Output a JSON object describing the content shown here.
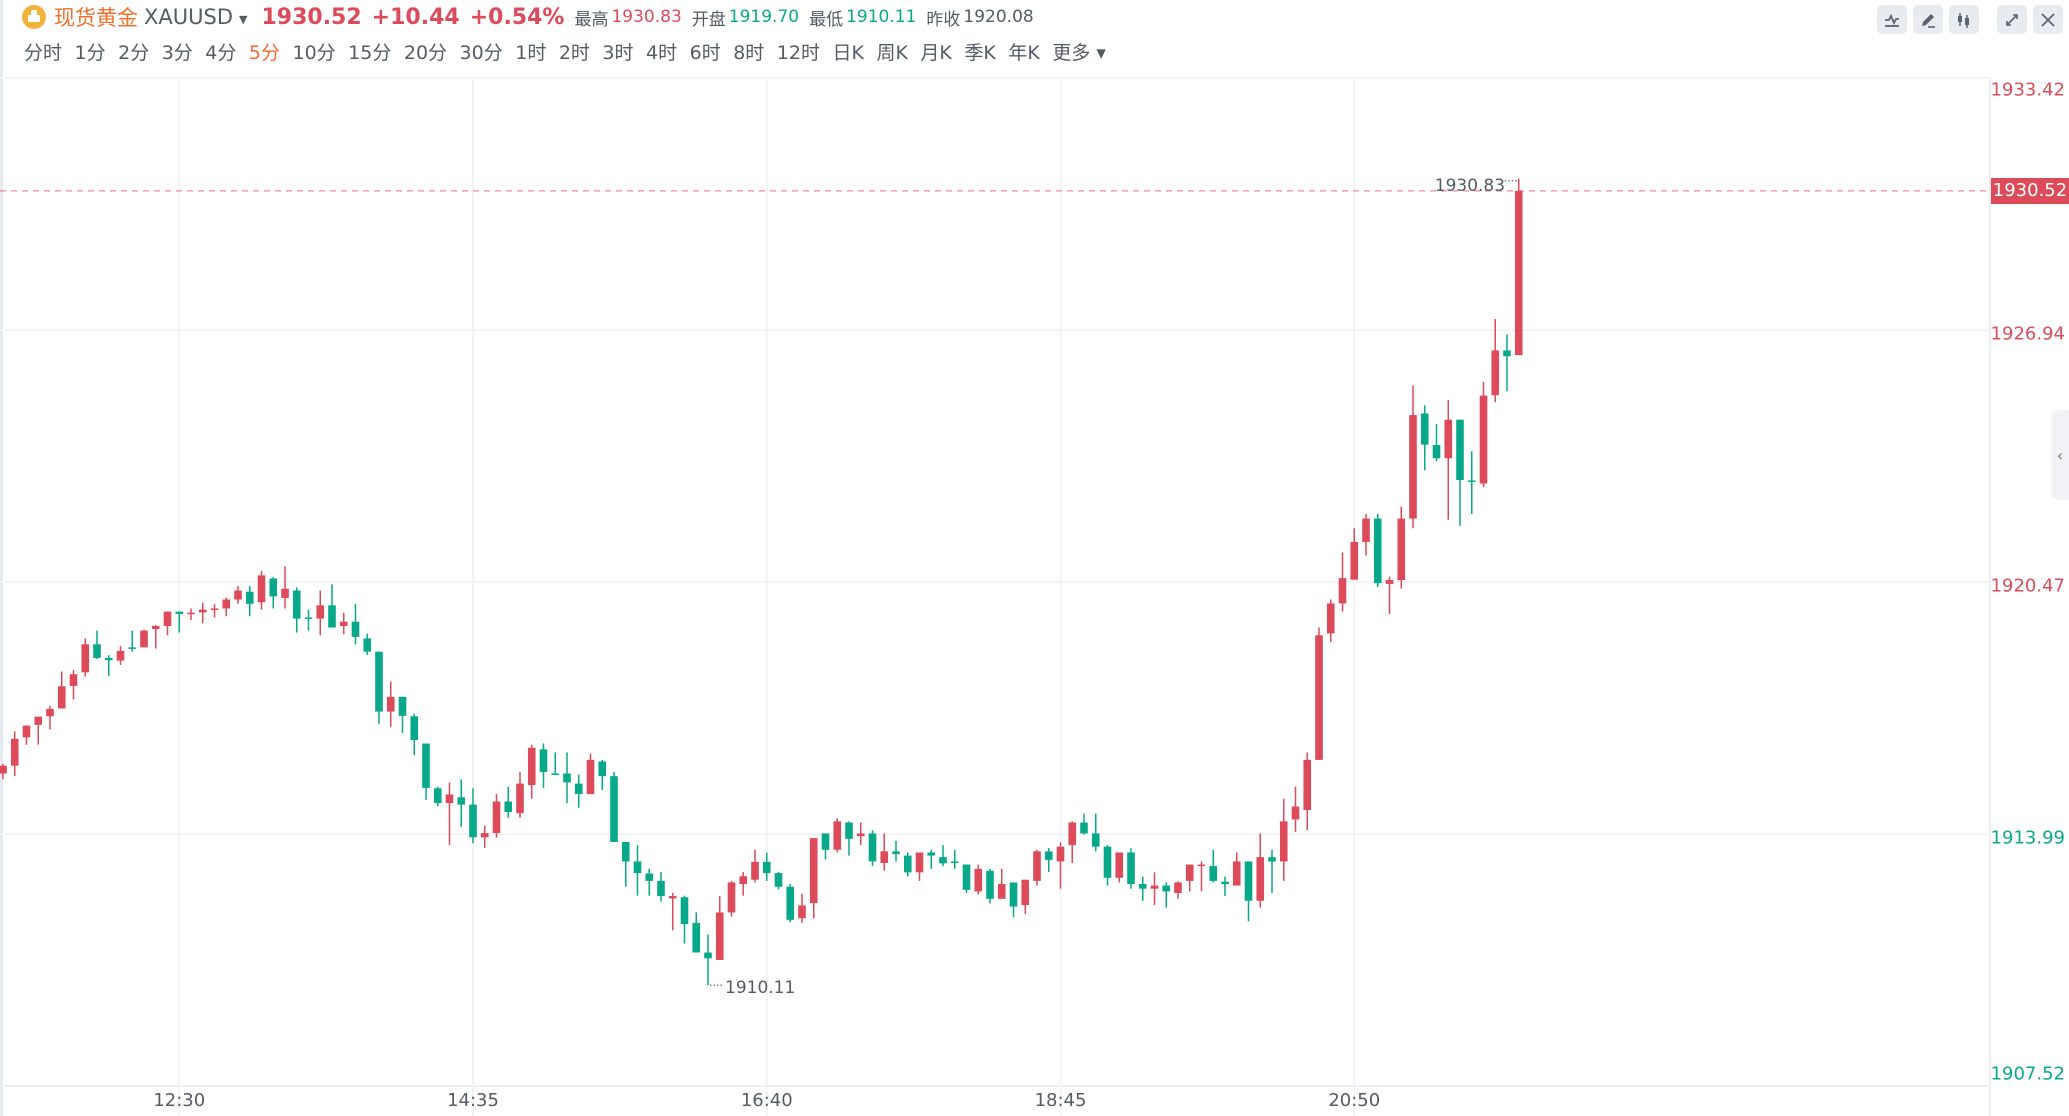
{
  "header": {
    "title": "现货黄金",
    "symbol": "XAUUSD",
    "last_price": "1930.52",
    "change": "+10.44",
    "change_pct": "+0.54%",
    "high_label": "最高",
    "high": "1930.83",
    "open_label": "开盘",
    "open": "1919.70",
    "low_label": "最低",
    "low": "1910.11",
    "prev_close_label": "昨收",
    "prev_close": "1920.08"
  },
  "periods": [
    "分时",
    "1分",
    "2分",
    "3分",
    "4分",
    "5分",
    "10分",
    "15分",
    "20分",
    "30分",
    "1时",
    "2时",
    "3时",
    "4时",
    "6时",
    "8时",
    "12时",
    "日K",
    "周K",
    "月K",
    "季K",
    "年K",
    "更多"
  ],
  "active_period": "5分",
  "tools": [
    "indicator-icon",
    "draw-pencil-icon",
    "candlestick-type-icon",
    "expand-icon",
    "close-icon"
  ],
  "colors": {
    "up": "#dd4b5b",
    "down": "#08a98a",
    "active": "#f26b3a",
    "title": "#f0712c"
  },
  "chart_data": {
    "type": "candlestick",
    "interval": "5分",
    "ylim": [
      1907.52,
      1933.42
    ],
    "y_ticks": [
      "1933.42",
      "1926.94",
      "1920.47",
      "1913.99",
      "1907.52"
    ],
    "x_ticks": [
      "12:30",
      "14:35",
      "16:40",
      "18:45",
      "20:50"
    ],
    "last_price_tag": "1930.52",
    "max_annotation": "1930.83",
    "min_annotation": "1910.11",
    "grid": true,
    "fields": [
      "time",
      "open",
      "high",
      "low",
      "close"
    ],
    "candles": [
      [
        "11:15",
        1915.55,
        1915.8,
        1915.4,
        1915.75
      ],
      [
        "11:20",
        1915.75,
        1916.63,
        1915.48,
        1916.44
      ],
      [
        "11:25",
        1916.48,
        1916.78,
        1916.29,
        1916.78
      ],
      [
        "11:30",
        1916.8,
        1917.01,
        1916.29,
        1917.01
      ],
      [
        "11:35",
        1917.02,
        1917.29,
        1916.68,
        1917.21
      ],
      [
        "11:40",
        1917.22,
        1918.17,
        1917.22,
        1917.79
      ],
      [
        "11:45",
        1917.8,
        1918.21,
        1917.45,
        1918.1
      ],
      [
        "11:50",
        1918.15,
        1919.02,
        1918.04,
        1918.87
      ],
      [
        "11:55",
        1918.87,
        1919.22,
        1918.49,
        1918.52
      ],
      [
        "12:00",
        1918.52,
        1918.59,
        1918.06,
        1918.46
      ],
      [
        "12:05",
        1918.45,
        1918.83,
        1918.34,
        1918.7
      ],
      [
        "12:10",
        1918.79,
        1919.22,
        1918.68,
        1918.76
      ],
      [
        "12:15",
        1918.79,
        1919.25,
        1918.79,
        1919.22
      ],
      [
        "12:20",
        1919.26,
        1919.36,
        1918.76,
        1919.34
      ],
      [
        "12:25",
        1919.34,
        1919.71,
        1919.1,
        1919.71
      ],
      [
        "12:30",
        1919.71,
        1919.71,
        1919.17,
        1919.65
      ],
      [
        "12:35",
        1919.65,
        1919.79,
        1919.49,
        1919.68
      ],
      [
        "12:40",
        1919.69,
        1919.94,
        1919.41,
        1919.76
      ],
      [
        "12:45",
        1919.76,
        1919.9,
        1919.56,
        1919.79
      ],
      [
        "12:50",
        1919.79,
        1920.07,
        1919.59,
        1920.02
      ],
      [
        "12:55",
        1920.02,
        1920.37,
        1919.91,
        1920.25
      ],
      [
        "13:00",
        1920.22,
        1920.37,
        1919.59,
        1919.91
      ],
      [
        "13:05",
        1919.95,
        1920.76,
        1919.76,
        1920.64
      ],
      [
        "13:10",
        1920.56,
        1920.6,
        1919.79,
        1920.1
      ],
      [
        "13:15",
        1920.06,
        1920.87,
        1919.79,
        1920.3
      ],
      [
        "13:20",
        1920.25,
        1920.33,
        1919.17,
        1919.53
      ],
      [
        "13:25",
        1919.56,
        1919.76,
        1919.22,
        1919.53
      ],
      [
        "13:30",
        1919.53,
        1920.25,
        1919.1,
        1919.87
      ],
      [
        "13:35",
        1919.87,
        1920.41,
        1919.3,
        1919.3
      ],
      [
        "13:40",
        1919.34,
        1919.68,
        1919.13,
        1919.45
      ],
      [
        "13:45",
        1919.45,
        1919.91,
        1918.87,
        1919.06
      ],
      [
        "13:50",
        1919.02,
        1919.14,
        1918.6,
        1918.68
      ],
      [
        "13:55",
        1918.68,
        1918.68,
        1916.83,
        1917.14
      ],
      [
        "14:00",
        1917.14,
        1917.91,
        1916.75,
        1917.52
      ],
      [
        "14:05",
        1917.52,
        1917.52,
        1916.59,
        1917.03
      ],
      [
        "14:10",
        1917.02,
        1917.09,
        1916.02,
        1916.41
      ],
      [
        "14:15",
        1916.32,
        1916.32,
        1914.87,
        1915.18
      ],
      [
        "14:20",
        1915.17,
        1915.21,
        1914.71,
        1914.79
      ],
      [
        "14:25",
        1914.79,
        1915.32,
        1913.71,
        1915.01
      ],
      [
        "14:30",
        1914.94,
        1915.4,
        1914.18,
        1914.75
      ],
      [
        "14:35",
        1914.75,
        1915.17,
        1913.76,
        1913.91
      ],
      [
        "14:40",
        1913.91,
        1914.21,
        1913.64,
        1914.02
      ],
      [
        "14:45",
        1914.02,
        1915.02,
        1913.9,
        1914.83
      ],
      [
        "14:50",
        1914.83,
        1915.21,
        1914.41,
        1914.56
      ],
      [
        "14:55",
        1914.53,
        1915.59,
        1914.41,
        1915.29
      ],
      [
        "15:00",
        1915.25,
        1916.29,
        1914.9,
        1916.21
      ],
      [
        "15:05",
        1916.17,
        1916.32,
        1915.18,
        1915.59
      ],
      [
        "15:10",
        1915.55,
        1916.09,
        1915.53,
        1915.53
      ],
      [
        "15:15",
        1915.55,
        1916.09,
        1914.79,
        1915.32
      ],
      [
        "15:20",
        1915.29,
        1915.52,
        1914.67,
        1915.02
      ],
      [
        "15:25",
        1915.02,
        1916.06,
        1915.02,
        1915.9
      ],
      [
        "15:30",
        1915.86,
        1915.9,
        1915.13,
        1915.48
      ],
      [
        "15:35",
        1915.48,
        1915.59,
        1913.79,
        1913.79
      ],
      [
        "15:40",
        1913.79,
        1913.79,
        1912.64,
        1913.29
      ],
      [
        "15:45",
        1913.29,
        1913.71,
        1912.41,
        1912.99
      ],
      [
        "15:50",
        1912.98,
        1913.1,
        1912.41,
        1912.79
      ],
      [
        "15:55",
        1912.79,
        1913.02,
        1912.26,
        1912.4
      ],
      [
        "16:00",
        1912.34,
        1912.48,
        1911.52,
        1912.4
      ],
      [
        "16:05",
        1912.37,
        1912.41,
        1911.18,
        1911.68
      ],
      [
        "16:10",
        1911.71,
        1911.98,
        1910.95,
        1910.95
      ],
      [
        "16:15",
        1910.95,
        1911.41,
        1910.11,
        1910.8
      ],
      [
        "16:20",
        1910.76,
        1912.4,
        1910.76,
        1911.98
      ],
      [
        "16:25",
        1911.98,
        1912.79,
        1911.87,
        1912.75
      ],
      [
        "16:30",
        1912.71,
        1913.02,
        1912.41,
        1912.91
      ],
      [
        "16:35",
        1912.82,
        1913.59,
        1912.75,
        1913.28
      ],
      [
        "16:40",
        1913.28,
        1913.52,
        1912.79,
        1912.99
      ],
      [
        "16:45",
        1912.99,
        1913.02,
        1912.57,
        1912.64
      ],
      [
        "16:50",
        1912.64,
        1912.71,
        1911.73,
        1911.79
      ],
      [
        "16:55",
        1911.83,
        1912.46,
        1911.71,
        1912.16
      ],
      [
        "17:00",
        1912.22,
        1913.89,
        1911.83,
        1913.89
      ],
      [
        "17:05",
        1914.01,
        1914.01,
        1913.34,
        1913.59
      ],
      [
        "17:10",
        1913.59,
        1914.4,
        1913.52,
        1914.32
      ],
      [
        "17:15",
        1914.29,
        1914.32,
        1913.44,
        1913.87
      ],
      [
        "17:20",
        1913.94,
        1914.29,
        1913.71,
        1914.01
      ],
      [
        "17:25",
        1914.01,
        1914.09,
        1913.17,
        1913.29
      ],
      [
        "17:30",
        1913.25,
        1914.01,
        1913.05,
        1913.55
      ],
      [
        "17:35",
        1913.55,
        1913.82,
        1913.29,
        1913.48
      ],
      [
        "17:40",
        1913.44,
        1913.52,
        1912.9,
        1913.01
      ],
      [
        "17:45",
        1913.01,
        1913.52,
        1912.79,
        1913.52
      ],
      [
        "17:50",
        1913.52,
        1913.59,
        1913.1,
        1913.44
      ],
      [
        "17:55",
        1913.4,
        1913.71,
        1913.17,
        1913.24
      ],
      [
        "18:00",
        1913.29,
        1913.59,
        1913.1,
        1913.25
      ],
      [
        "18:05",
        1913.21,
        1913.21,
        1912.48,
        1912.56
      ],
      [
        "18:10",
        1912.52,
        1913.21,
        1912.44,
        1913.1
      ],
      [
        "18:15",
        1913.05,
        1913.1,
        1912.21,
        1912.33
      ],
      [
        "18:20",
        1912.33,
        1913.1,
        1912.33,
        1912.71
      ],
      [
        "18:25",
        1912.75,
        1912.75,
        1911.86,
        1912.13
      ],
      [
        "18:30",
        1912.17,
        1912.82,
        1911.94,
        1912.82
      ],
      [
        "18:35",
        1912.79,
        1913.59,
        1912.67,
        1913.55
      ],
      [
        "18:40",
        1913.55,
        1913.63,
        1913.02,
        1913.33
      ],
      [
        "18:45",
        1913.29,
        1913.78,
        1912.59,
        1913.67
      ],
      [
        "18:50",
        1913.71,
        1914.32,
        1913.25,
        1914.29
      ],
      [
        "18:55",
        1914.29,
        1914.52,
        1913.98,
        1914.01
      ],
      [
        "19:00",
        1914.01,
        1914.52,
        1913.55,
        1913.67
      ],
      [
        "19:05",
        1913.67,
        1913.71,
        1912.67,
        1912.87
      ],
      [
        "19:10",
        1912.87,
        1913.52,
        1912.75,
        1913.52
      ],
      [
        "19:15",
        1913.52,
        1913.63,
        1912.59,
        1912.71
      ],
      [
        "19:20",
        1912.71,
        1912.9,
        1912.28,
        1912.59
      ],
      [
        "19:25",
        1912.59,
        1913.01,
        1912.17,
        1912.67
      ],
      [
        "19:30",
        1912.67,
        1912.75,
        1912.1,
        1912.52
      ],
      [
        "19:35",
        1912.48,
        1912.78,
        1912.33,
        1912.75
      ],
      [
        "19:40",
        1912.79,
        1913.21,
        1912.52,
        1913.21
      ],
      [
        "19:45",
        1913.18,
        1913.29,
        1912.52,
        1913.21
      ],
      [
        "19:50",
        1913.17,
        1913.59,
        1912.75,
        1912.79
      ],
      [
        "19:55",
        1912.77,
        1912.9,
        1912.4,
        1912.71
      ],
      [
        "20:00",
        1912.67,
        1913.52,
        1912.67,
        1913.29
      ],
      [
        "20:05",
        1913.29,
        1913.29,
        1911.75,
        1912.28
      ],
      [
        "20:10",
        1912.28,
        1914.01,
        1912.1,
        1913.4
      ],
      [
        "20:15",
        1913.4,
        1913.59,
        1912.48,
        1913.29
      ],
      [
        "20:20",
        1913.29,
        1914.9,
        1912.79,
        1914.32
      ],
      [
        "20:25",
        1914.37,
        1915.21,
        1914.05,
        1914.7
      ],
      [
        "20:30",
        1914.61,
        1916.09,
        1914.1,
        1915.9
      ],
      [
        "20:35",
        1915.9,
        1919.3,
        1915.9,
        1919.1
      ],
      [
        "20:40",
        1919.15,
        1920.02,
        1918.93,
        1919.92
      ],
      [
        "20:45",
        1919.92,
        1921.23,
        1919.71,
        1920.57
      ],
      [
        "20:50",
        1920.53,
        1921.85,
        1920.53,
        1921.5
      ],
      [
        "20:55",
        1921.5,
        1922.22,
        1921.15,
        1922.1
      ],
      [
        "21:00",
        1922.1,
        1922.22,
        1920.34,
        1920.44
      ],
      [
        "21:05",
        1920.42,
        1920.61,
        1919.65,
        1920.52
      ],
      [
        "21:10",
        1920.52,
        1922.41,
        1920.3,
        1922.1
      ],
      [
        "21:15",
        1922.1,
        1925.52,
        1921.85,
        1924.76
      ],
      [
        "21:20",
        1924.8,
        1925.01,
        1923.34,
        1924.0
      ],
      [
        "21:25",
        1923.99,
        1924.53,
        1923.57,
        1923.65
      ],
      [
        "21:30",
        1923.65,
        1925.15,
        1922.07,
        1924.64
      ],
      [
        "21:35",
        1924.64,
        1924.64,
        1921.91,
        1923.09
      ],
      [
        "21:40",
        1923.08,
        1923.83,
        1922.22,
        1923.05
      ],
      [
        "21:45",
        1923.0,
        1925.61,
        1922.91,
        1925.26
      ],
      [
        "21:50",
        1925.27,
        1927.23,
        1925.09,
        1926.42
      ],
      [
        "21:55",
        1926.42,
        1926.83,
        1925.37,
        1926.27
      ],
      [
        "22:00",
        1926.3,
        1930.83,
        1926.3,
        1930.52
      ]
    ]
  }
}
